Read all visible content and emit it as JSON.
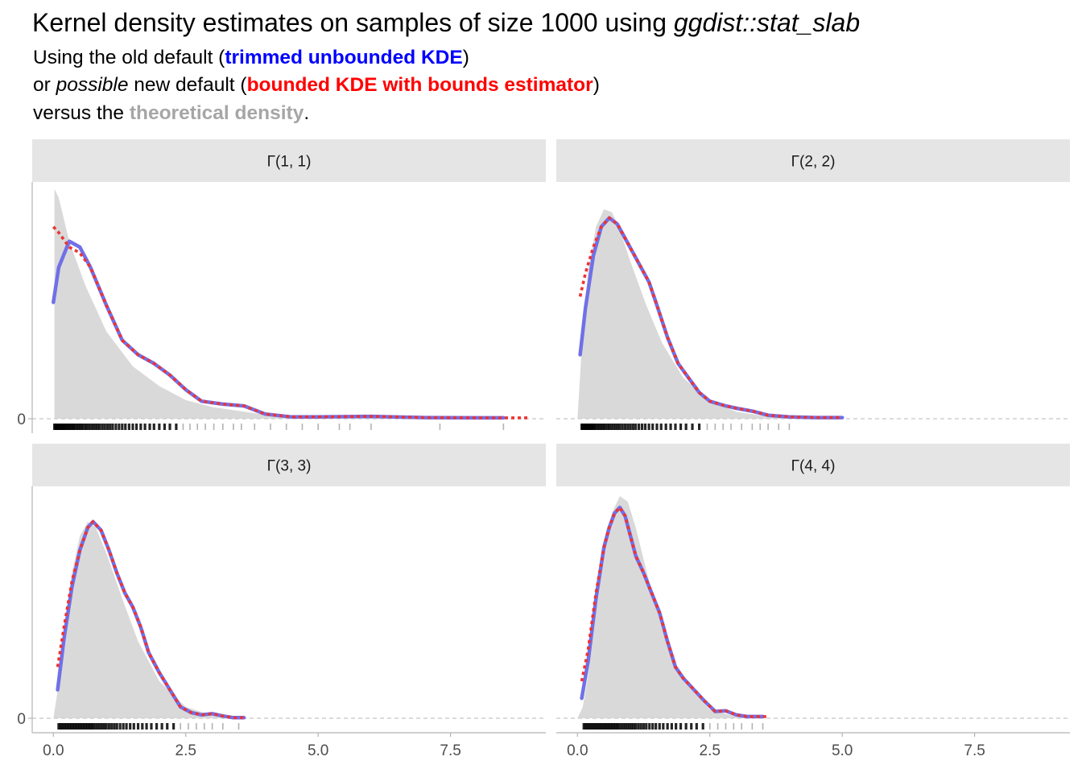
{
  "title": {
    "prefix": "Kernel density estimates on samples of size 1000 using ",
    "emphasis": "ggdist::stat_slab"
  },
  "subtitle": {
    "line1_prefix": "Using the old default (",
    "line1_highlight": "trimmed unbounded KDE",
    "line1_suffix": ")",
    "line2_prefix": "or ",
    "line2_emphasis": "possible",
    "line2_middle": " new default (",
    "line2_highlight": "bounded KDE with bounds estimator",
    "line2_suffix": ")",
    "line3_prefix": "versus the ",
    "line3_highlight": "theoretical density",
    "line3_suffix": "."
  },
  "colors": {
    "unbounded": "#0000ff",
    "bounded": "#ff0000",
    "theoretical": "#a6a6a6",
    "unbounded_line": "#7070e8",
    "bounded_line": "#ee3333",
    "theory_fill": "#d9d9d9",
    "strip_bg": "#e5e5e5"
  },
  "chart_data": {
    "type": "area",
    "layout": "facet_wrap 2x2, shared axes",
    "x_ticks": [
      0.0,
      2.5,
      5.0,
      7.5
    ],
    "x_tick_labels": [
      "0.0",
      "2.5",
      "5.0",
      "7.5"
    ],
    "xlim": [
      -0.4,
      9.3
    ],
    "ylim": [
      -0.3,
      4.0
    ],
    "y_ticks": [
      0
    ],
    "y_tick_labels": [
      "0"
    ],
    "legend": "none (encoded in subtitle colors)",
    "panels": [
      {
        "label": "Γ(1, 1)",
        "theoretical": [
          [
            0.02,
            3.95
          ],
          [
            0.1,
            3.8
          ],
          [
            0.3,
            3.05
          ],
          [
            0.6,
            2.3
          ],
          [
            1.0,
            1.5
          ],
          [
            1.5,
            0.9
          ],
          [
            2.0,
            0.56
          ],
          [
            2.5,
            0.32
          ],
          [
            3.0,
            0.2
          ],
          [
            4.0,
            0.07
          ],
          [
            5.0,
            0.03
          ],
          [
            6.0,
            0.015
          ],
          [
            7.0,
            0.007
          ],
          [
            8.0,
            0.003
          ],
          [
            8.5,
            0.002
          ]
        ],
        "unbounded_kde": [
          [
            0.0,
            2.0
          ],
          [
            0.1,
            2.6
          ],
          [
            0.3,
            3.05
          ],
          [
            0.5,
            2.95
          ],
          [
            0.7,
            2.6
          ],
          [
            1.0,
            1.95
          ],
          [
            1.3,
            1.35
          ],
          [
            1.6,
            1.1
          ],
          [
            1.9,
            0.95
          ],
          [
            2.2,
            0.75
          ],
          [
            2.5,
            0.5
          ],
          [
            2.8,
            0.3
          ],
          [
            3.2,
            0.25
          ],
          [
            3.6,
            0.22
          ],
          [
            4.0,
            0.08
          ],
          [
            4.5,
            0.03
          ],
          [
            5.0,
            0.03
          ],
          [
            6.0,
            0.04
          ],
          [
            7.0,
            0.02
          ],
          [
            8.0,
            0.015
          ],
          [
            8.5,
            0.015
          ]
        ],
        "bounded_kde": [
          [
            0.0,
            3.3
          ],
          [
            0.1,
            3.2
          ],
          [
            0.3,
            2.95
          ],
          [
            0.5,
            2.85
          ],
          [
            0.7,
            2.6
          ],
          [
            1.0,
            1.95
          ],
          [
            1.3,
            1.35
          ],
          [
            1.6,
            1.1
          ],
          [
            1.9,
            0.95
          ],
          [
            2.2,
            0.75
          ],
          [
            2.5,
            0.5
          ],
          [
            2.8,
            0.3
          ],
          [
            3.2,
            0.25
          ],
          [
            3.6,
            0.22
          ],
          [
            4.0,
            0.08
          ],
          [
            4.5,
            0.03
          ],
          [
            5.0,
            0.03
          ],
          [
            6.0,
            0.04
          ],
          [
            7.0,
            0.02
          ],
          [
            8.0,
            0.015
          ],
          [
            9.0,
            0.015
          ]
        ],
        "rug": [
          0.02,
          0.04,
          0.05,
          0.07,
          0.09,
          0.11,
          0.13,
          0.15,
          0.17,
          0.19,
          0.21,
          0.23,
          0.26,
          0.28,
          0.31,
          0.33,
          0.36,
          0.38,
          0.41,
          0.44,
          0.47,
          0.5,
          0.53,
          0.56,
          0.6,
          0.63,
          0.67,
          0.71,
          0.75,
          0.79,
          0.83,
          0.87,
          0.92,
          0.97,
          1.02,
          1.07,
          1.12,
          1.18,
          1.24,
          1.3,
          1.36,
          1.43,
          1.5,
          1.57,
          1.65,
          1.73,
          1.82,
          1.9,
          2.0,
          2.1,
          2.2,
          2.32,
          2.45,
          2.58,
          2.72,
          2.87,
          3.03,
          3.2,
          3.4,
          3.55,
          3.8,
          4.1,
          4.4,
          4.7,
          5.0,
          5.4,
          5.6,
          6.0,
          7.3,
          8.5
        ]
      },
      {
        "label": "Γ(2, 2)",
        "theoretical": [
          [
            0.0,
            0.0
          ],
          [
            0.1,
            1.5
          ],
          [
            0.2,
            2.55
          ],
          [
            0.35,
            3.3
          ],
          [
            0.5,
            3.6
          ],
          [
            0.65,
            3.55
          ],
          [
            0.8,
            3.25
          ],
          [
            1.0,
            2.7
          ],
          [
            1.3,
            1.95
          ],
          [
            1.6,
            1.3
          ],
          [
            2.0,
            0.7
          ],
          [
            2.5,
            0.3
          ],
          [
            3.0,
            0.12
          ],
          [
            3.5,
            0.05
          ],
          [
            4.0,
            0.02
          ],
          [
            5.0,
            0.003
          ]
        ],
        "unbounded_kde": [
          [
            0.05,
            1.1
          ],
          [
            0.15,
            1.9
          ],
          [
            0.3,
            2.8
          ],
          [
            0.45,
            3.3
          ],
          [
            0.6,
            3.45
          ],
          [
            0.75,
            3.35
          ],
          [
            0.9,
            3.1
          ],
          [
            1.05,
            2.85
          ],
          [
            1.2,
            2.6
          ],
          [
            1.35,
            2.35
          ],
          [
            1.5,
            1.95
          ],
          [
            1.7,
            1.4
          ],
          [
            1.9,
            0.95
          ],
          [
            2.1,
            0.7
          ],
          [
            2.3,
            0.45
          ],
          [
            2.5,
            0.3
          ],
          [
            2.8,
            0.22
          ],
          [
            3.0,
            0.18
          ],
          [
            3.3,
            0.13
          ],
          [
            3.6,
            0.06
          ],
          [
            4.0,
            0.03
          ],
          [
            4.5,
            0.02
          ],
          [
            5.0,
            0.02
          ]
        ],
        "bounded_kde": [
          [
            0.05,
            2.1
          ],
          [
            0.15,
            2.5
          ],
          [
            0.3,
            2.95
          ],
          [
            0.45,
            3.3
          ],
          [
            0.6,
            3.45
          ],
          [
            0.75,
            3.35
          ],
          [
            0.9,
            3.1
          ],
          [
            1.05,
            2.85
          ],
          [
            1.2,
            2.6
          ],
          [
            1.35,
            2.35
          ],
          [
            1.5,
            1.95
          ],
          [
            1.7,
            1.4
          ],
          [
            1.9,
            0.95
          ],
          [
            2.1,
            0.7
          ],
          [
            2.3,
            0.45
          ],
          [
            2.5,
            0.3
          ],
          [
            2.8,
            0.22
          ],
          [
            3.0,
            0.18
          ],
          [
            3.3,
            0.13
          ],
          [
            3.6,
            0.06
          ],
          [
            4.0,
            0.03
          ],
          [
            4.5,
            0.02
          ],
          [
            5.0,
            0.02
          ]
        ],
        "rug": [
          0.08,
          0.1,
          0.12,
          0.14,
          0.16,
          0.18,
          0.2,
          0.22,
          0.24,
          0.26,
          0.28,
          0.3,
          0.32,
          0.35,
          0.38,
          0.41,
          0.44,
          0.47,
          0.5,
          0.53,
          0.57,
          0.6,
          0.64,
          0.68,
          0.72,
          0.76,
          0.8,
          0.85,
          0.9,
          0.95,
          1.0,
          1.05,
          1.1,
          1.16,
          1.22,
          1.28,
          1.35,
          1.42,
          1.5,
          1.58,
          1.67,
          1.76,
          1.85,
          1.95,
          2.05,
          2.17,
          2.3,
          2.45,
          2.6,
          2.75,
          2.9,
          3.1,
          3.3,
          3.45,
          3.6,
          3.8,
          4.0
        ]
      },
      {
        "label": "Γ(3, 3)",
        "theoretical": [
          [
            0.0,
            0.0
          ],
          [
            0.1,
            0.6
          ],
          [
            0.2,
            1.5
          ],
          [
            0.35,
            2.55
          ],
          [
            0.5,
            3.2
          ],
          [
            0.65,
            3.45
          ],
          [
            0.8,
            3.35
          ],
          [
            1.0,
            2.9
          ],
          [
            1.3,
            2.1
          ],
          [
            1.6,
            1.35
          ],
          [
            2.0,
            0.65
          ],
          [
            2.5,
            0.2
          ],
          [
            3.0,
            0.05
          ],
          [
            3.5,
            0.01
          ]
        ],
        "unbounded_kde": [
          [
            0.08,
            0.5
          ],
          [
            0.2,
            1.4
          ],
          [
            0.35,
            2.3
          ],
          [
            0.5,
            2.95
          ],
          [
            0.65,
            3.35
          ],
          [
            0.75,
            3.45
          ],
          [
            0.9,
            3.3
          ],
          [
            1.05,
            2.95
          ],
          [
            1.2,
            2.55
          ],
          [
            1.35,
            2.2
          ],
          [
            1.5,
            1.95
          ],
          [
            1.65,
            1.6
          ],
          [
            1.8,
            1.15
          ],
          [
            2.0,
            0.8
          ],
          [
            2.2,
            0.5
          ],
          [
            2.4,
            0.2
          ],
          [
            2.6,
            0.1
          ],
          [
            2.8,
            0.06
          ],
          [
            3.0,
            0.08
          ],
          [
            3.2,
            0.04
          ],
          [
            3.4,
            0.01
          ],
          [
            3.6,
            0.01
          ]
        ],
        "bounded_kde": [
          [
            0.08,
            0.9
          ],
          [
            0.2,
            1.6
          ],
          [
            0.35,
            2.4
          ],
          [
            0.5,
            2.95
          ],
          [
            0.65,
            3.35
          ],
          [
            0.75,
            3.45
          ],
          [
            0.9,
            3.3
          ],
          [
            1.05,
            2.95
          ],
          [
            1.2,
            2.55
          ],
          [
            1.35,
            2.2
          ],
          [
            1.5,
            1.95
          ],
          [
            1.65,
            1.6
          ],
          [
            1.8,
            1.15
          ],
          [
            2.0,
            0.8
          ],
          [
            2.2,
            0.5
          ],
          [
            2.4,
            0.2
          ],
          [
            2.6,
            0.1
          ],
          [
            2.8,
            0.06
          ],
          [
            3.0,
            0.08
          ],
          [
            3.2,
            0.04
          ],
          [
            3.4,
            0.01
          ],
          [
            3.6,
            0.01
          ]
        ],
        "rug": [
          0.1,
          0.13,
          0.16,
          0.19,
          0.22,
          0.25,
          0.28,
          0.31,
          0.34,
          0.37,
          0.4,
          0.43,
          0.46,
          0.49,
          0.52,
          0.55,
          0.58,
          0.61,
          0.64,
          0.67,
          0.7,
          0.73,
          0.76,
          0.8,
          0.84,
          0.88,
          0.92,
          0.96,
          1.0,
          1.05,
          1.1,
          1.15,
          1.2,
          1.26,
          1.32,
          1.38,
          1.45,
          1.52,
          1.6,
          1.68,
          1.76,
          1.85,
          1.95,
          2.05,
          2.15,
          2.27,
          2.4,
          2.55,
          2.7,
          2.85,
          3.0,
          3.2,
          3.5
        ]
      },
      {
        "label": "Γ(4, 4)",
        "theoretical": [
          [
            0.0,
            0.0
          ],
          [
            0.1,
            0.2
          ],
          [
            0.2,
            0.75
          ],
          [
            0.35,
            1.9
          ],
          [
            0.5,
            2.95
          ],
          [
            0.65,
            3.6
          ],
          [
            0.8,
            3.9
          ],
          [
            0.95,
            3.8
          ],
          [
            1.1,
            3.35
          ],
          [
            1.3,
            2.6
          ],
          [
            1.6,
            1.55
          ],
          [
            2.0,
            0.65
          ],
          [
            2.5,
            0.15
          ],
          [
            3.0,
            0.03
          ],
          [
            3.5,
            0.005
          ]
        ],
        "unbounded_kde": [
          [
            0.08,
            0.35
          ],
          [
            0.2,
            1.0
          ],
          [
            0.35,
            2.1
          ],
          [
            0.5,
            3.0
          ],
          [
            0.6,
            3.35
          ],
          [
            0.7,
            3.6
          ],
          [
            0.8,
            3.7
          ],
          [
            0.9,
            3.55
          ],
          [
            1.0,
            3.2
          ],
          [
            1.1,
            2.85
          ],
          [
            1.25,
            2.55
          ],
          [
            1.4,
            2.2
          ],
          [
            1.55,
            1.85
          ],
          [
            1.7,
            1.35
          ],
          [
            1.85,
            0.9
          ],
          [
            2.0,
            0.7
          ],
          [
            2.2,
            0.5
          ],
          [
            2.4,
            0.3
          ],
          [
            2.6,
            0.12
          ],
          [
            2.8,
            0.13
          ],
          [
            3.0,
            0.06
          ],
          [
            3.2,
            0.03
          ],
          [
            3.5,
            0.03
          ]
        ],
        "bounded_kde": [
          [
            0.08,
            0.65
          ],
          [
            0.2,
            1.2
          ],
          [
            0.35,
            2.2
          ],
          [
            0.5,
            3.0
          ],
          [
            0.6,
            3.35
          ],
          [
            0.7,
            3.6
          ],
          [
            0.8,
            3.7
          ],
          [
            0.9,
            3.55
          ],
          [
            1.0,
            3.2
          ],
          [
            1.1,
            2.85
          ],
          [
            1.25,
            2.55
          ],
          [
            1.4,
            2.2
          ],
          [
            1.55,
            1.85
          ],
          [
            1.7,
            1.35
          ],
          [
            1.85,
            0.9
          ],
          [
            2.0,
            0.7
          ],
          [
            2.2,
            0.5
          ],
          [
            2.4,
            0.3
          ],
          [
            2.6,
            0.12
          ],
          [
            2.8,
            0.13
          ],
          [
            3.0,
            0.06
          ],
          [
            3.2,
            0.03
          ],
          [
            3.6,
            0.03
          ]
        ],
        "rug": [
          0.12,
          0.15,
          0.18,
          0.21,
          0.24,
          0.27,
          0.3,
          0.33,
          0.36,
          0.39,
          0.42,
          0.45,
          0.48,
          0.51,
          0.54,
          0.57,
          0.6,
          0.63,
          0.66,
          0.69,
          0.72,
          0.75,
          0.78,
          0.82,
          0.86,
          0.9,
          0.94,
          0.98,
          1.02,
          1.06,
          1.1,
          1.15,
          1.2,
          1.25,
          1.3,
          1.36,
          1.42,
          1.48,
          1.55,
          1.62,
          1.7,
          1.78,
          1.86,
          1.95,
          2.05,
          2.15,
          2.25,
          2.37,
          2.5,
          2.65,
          2.8,
          2.95,
          3.1,
          3.3,
          3.5
        ]
      }
    ]
  }
}
